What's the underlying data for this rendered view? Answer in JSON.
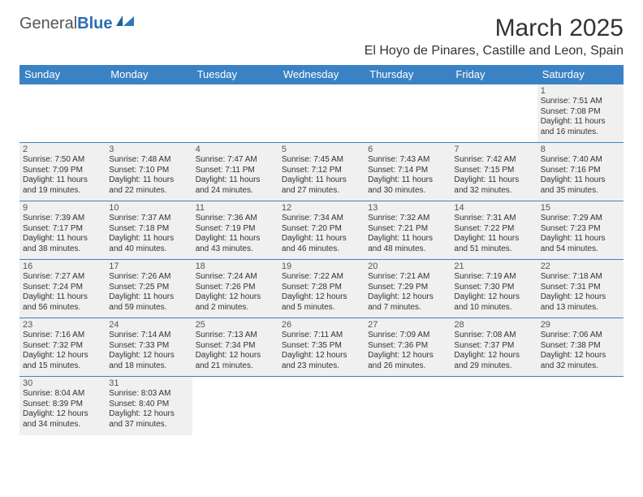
{
  "logo": {
    "textA": "General",
    "textB": "Blue"
  },
  "title": "March 2025",
  "location": "El Hoyo de Pinares, Castille and Leon, Spain",
  "headerColor": "#3b82c4",
  "dayHeaders": [
    "Sunday",
    "Monday",
    "Tuesday",
    "Wednesday",
    "Thursday",
    "Friday",
    "Saturday"
  ],
  "weeks": [
    [
      null,
      null,
      null,
      null,
      null,
      null,
      {
        "n": "1",
        "sr": "Sunrise: 7:51 AM",
        "ss": "Sunset: 7:08 PM",
        "d1": "Daylight: 11 hours",
        "d2": "and 16 minutes."
      }
    ],
    [
      {
        "n": "2",
        "sr": "Sunrise: 7:50 AM",
        "ss": "Sunset: 7:09 PM",
        "d1": "Daylight: 11 hours",
        "d2": "and 19 minutes."
      },
      {
        "n": "3",
        "sr": "Sunrise: 7:48 AM",
        "ss": "Sunset: 7:10 PM",
        "d1": "Daylight: 11 hours",
        "d2": "and 22 minutes."
      },
      {
        "n": "4",
        "sr": "Sunrise: 7:47 AM",
        "ss": "Sunset: 7:11 PM",
        "d1": "Daylight: 11 hours",
        "d2": "and 24 minutes."
      },
      {
        "n": "5",
        "sr": "Sunrise: 7:45 AM",
        "ss": "Sunset: 7:12 PM",
        "d1": "Daylight: 11 hours",
        "d2": "and 27 minutes."
      },
      {
        "n": "6",
        "sr": "Sunrise: 7:43 AM",
        "ss": "Sunset: 7:14 PM",
        "d1": "Daylight: 11 hours",
        "d2": "and 30 minutes."
      },
      {
        "n": "7",
        "sr": "Sunrise: 7:42 AM",
        "ss": "Sunset: 7:15 PM",
        "d1": "Daylight: 11 hours",
        "d2": "and 32 minutes."
      },
      {
        "n": "8",
        "sr": "Sunrise: 7:40 AM",
        "ss": "Sunset: 7:16 PM",
        "d1": "Daylight: 11 hours",
        "d2": "and 35 minutes."
      }
    ],
    [
      {
        "n": "9",
        "sr": "Sunrise: 7:39 AM",
        "ss": "Sunset: 7:17 PM",
        "d1": "Daylight: 11 hours",
        "d2": "and 38 minutes."
      },
      {
        "n": "10",
        "sr": "Sunrise: 7:37 AM",
        "ss": "Sunset: 7:18 PM",
        "d1": "Daylight: 11 hours",
        "d2": "and 40 minutes."
      },
      {
        "n": "11",
        "sr": "Sunrise: 7:36 AM",
        "ss": "Sunset: 7:19 PM",
        "d1": "Daylight: 11 hours",
        "d2": "and 43 minutes."
      },
      {
        "n": "12",
        "sr": "Sunrise: 7:34 AM",
        "ss": "Sunset: 7:20 PM",
        "d1": "Daylight: 11 hours",
        "d2": "and 46 minutes."
      },
      {
        "n": "13",
        "sr": "Sunrise: 7:32 AM",
        "ss": "Sunset: 7:21 PM",
        "d1": "Daylight: 11 hours",
        "d2": "and 48 minutes."
      },
      {
        "n": "14",
        "sr": "Sunrise: 7:31 AM",
        "ss": "Sunset: 7:22 PM",
        "d1": "Daylight: 11 hours",
        "d2": "and 51 minutes."
      },
      {
        "n": "15",
        "sr": "Sunrise: 7:29 AM",
        "ss": "Sunset: 7:23 PM",
        "d1": "Daylight: 11 hours",
        "d2": "and 54 minutes."
      }
    ],
    [
      {
        "n": "16",
        "sr": "Sunrise: 7:27 AM",
        "ss": "Sunset: 7:24 PM",
        "d1": "Daylight: 11 hours",
        "d2": "and 56 minutes."
      },
      {
        "n": "17",
        "sr": "Sunrise: 7:26 AM",
        "ss": "Sunset: 7:25 PM",
        "d1": "Daylight: 11 hours",
        "d2": "and 59 minutes."
      },
      {
        "n": "18",
        "sr": "Sunrise: 7:24 AM",
        "ss": "Sunset: 7:26 PM",
        "d1": "Daylight: 12 hours",
        "d2": "and 2 minutes."
      },
      {
        "n": "19",
        "sr": "Sunrise: 7:22 AM",
        "ss": "Sunset: 7:28 PM",
        "d1": "Daylight: 12 hours",
        "d2": "and 5 minutes."
      },
      {
        "n": "20",
        "sr": "Sunrise: 7:21 AM",
        "ss": "Sunset: 7:29 PM",
        "d1": "Daylight: 12 hours",
        "d2": "and 7 minutes."
      },
      {
        "n": "21",
        "sr": "Sunrise: 7:19 AM",
        "ss": "Sunset: 7:30 PM",
        "d1": "Daylight: 12 hours",
        "d2": "and 10 minutes."
      },
      {
        "n": "22",
        "sr": "Sunrise: 7:18 AM",
        "ss": "Sunset: 7:31 PM",
        "d1": "Daylight: 12 hours",
        "d2": "and 13 minutes."
      }
    ],
    [
      {
        "n": "23",
        "sr": "Sunrise: 7:16 AM",
        "ss": "Sunset: 7:32 PM",
        "d1": "Daylight: 12 hours",
        "d2": "and 15 minutes."
      },
      {
        "n": "24",
        "sr": "Sunrise: 7:14 AM",
        "ss": "Sunset: 7:33 PM",
        "d1": "Daylight: 12 hours",
        "d2": "and 18 minutes."
      },
      {
        "n": "25",
        "sr": "Sunrise: 7:13 AM",
        "ss": "Sunset: 7:34 PM",
        "d1": "Daylight: 12 hours",
        "d2": "and 21 minutes."
      },
      {
        "n": "26",
        "sr": "Sunrise: 7:11 AM",
        "ss": "Sunset: 7:35 PM",
        "d1": "Daylight: 12 hours",
        "d2": "and 23 minutes."
      },
      {
        "n": "27",
        "sr": "Sunrise: 7:09 AM",
        "ss": "Sunset: 7:36 PM",
        "d1": "Daylight: 12 hours",
        "d2": "and 26 minutes."
      },
      {
        "n": "28",
        "sr": "Sunrise: 7:08 AM",
        "ss": "Sunset: 7:37 PM",
        "d1": "Daylight: 12 hours",
        "d2": "and 29 minutes."
      },
      {
        "n": "29",
        "sr": "Sunrise: 7:06 AM",
        "ss": "Sunset: 7:38 PM",
        "d1": "Daylight: 12 hours",
        "d2": "and 32 minutes."
      }
    ],
    [
      {
        "n": "30",
        "sr": "Sunrise: 8:04 AM",
        "ss": "Sunset: 8:39 PM",
        "d1": "Daylight: 12 hours",
        "d2": "and 34 minutes."
      },
      {
        "n": "31",
        "sr": "Sunrise: 8:03 AM",
        "ss": "Sunset: 8:40 PM",
        "d1": "Daylight: 12 hours",
        "d2": "and 37 minutes."
      },
      null,
      null,
      null,
      null,
      null
    ]
  ]
}
